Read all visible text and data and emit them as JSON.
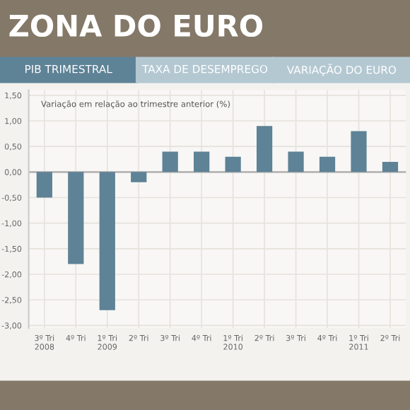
{
  "chart_data": {
    "type": "bar",
    "title": "ZONA DO EURO",
    "subtitle": "Variação em relação ao trimestre anterior (%)",
    "annotations": [
      "PIB TRIMESTRAL",
      "TAXA DE DESEMPREGO",
      "VARIAÇÃO DO EURO"
    ],
    "categories": [
      "3º Tri\n2008",
      "4º Tri",
      "1º Tri\n2009",
      "2º Tri",
      "3º Tri",
      "4º Tri",
      "1º Tri\n2010",
      "2º Tri",
      "3º Tri",
      "4º Tri",
      "1º Tri\n2011",
      "2º Tri"
    ],
    "values": [
      -0.5,
      -1.8,
      -2.7,
      -0.2,
      0.4,
      0.4,
      0.3,
      0.9,
      0.4,
      0.3,
      0.8,
      0.2
    ],
    "color": "#5e8296",
    "ylim": [
      -3.05,
      1.6
    ],
    "yticks": [
      {
        "value": 1.5,
        "label": "1,50"
      },
      {
        "value": 1.0,
        "label": "1,00"
      },
      {
        "value": 0.5,
        "label": "0,50"
      },
      {
        "value": 0.0,
        "label": "0,00"
      },
      {
        "value": -0.5,
        "label": "-0,50"
      },
      {
        "value": -1.0,
        "label": "-1,00"
      },
      {
        "value": -1.5,
        "label": "-1,50"
      },
      {
        "value": -2.0,
        "label": "-2,00"
      },
      {
        "value": -2.5,
        "label": "-2,50"
      },
      {
        "value": -3.0,
        "label": "-3,00"
      }
    ],
    "grid": true
  }
}
